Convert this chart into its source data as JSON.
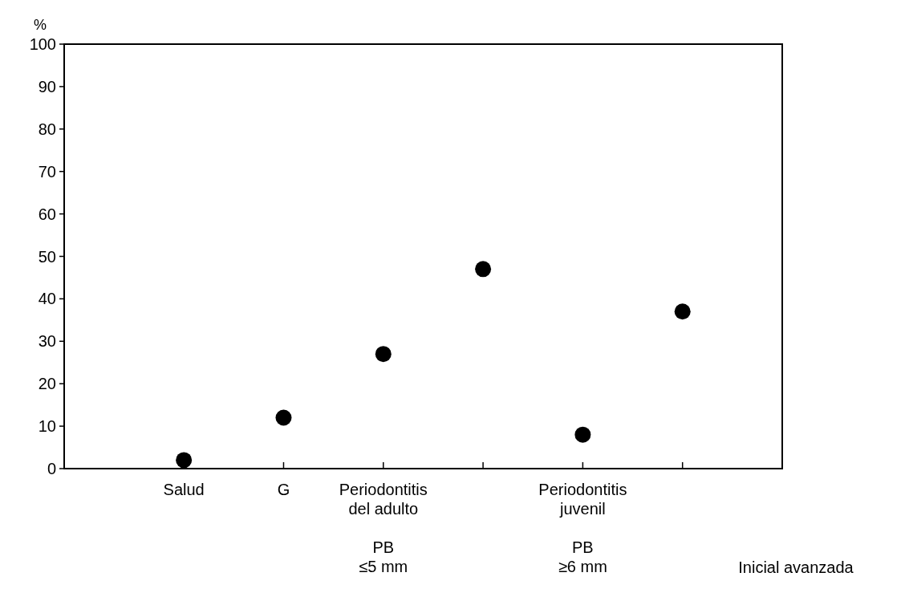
{
  "chart_data": {
    "type": "scatter",
    "ylabel": "%",
    "categories": [
      "Salud",
      "G",
      "Periodontitis\ndel adulto\n\nPB\n≤5 mm",
      null,
      "Periodontitis\njuvenil\n\nPB\n≥6 mm",
      null
    ],
    "values": [
      2,
      12,
      27,
      47,
      8,
      37
    ],
    "color": "#000000",
    "marker": "circle",
    "ylim": [
      0,
      100
    ],
    "yticks": [
      0,
      10,
      20,
      30,
      40,
      50,
      60,
      70,
      80,
      90,
      100
    ],
    "annotations": [
      "Inicial avanzada"
    ]
  }
}
